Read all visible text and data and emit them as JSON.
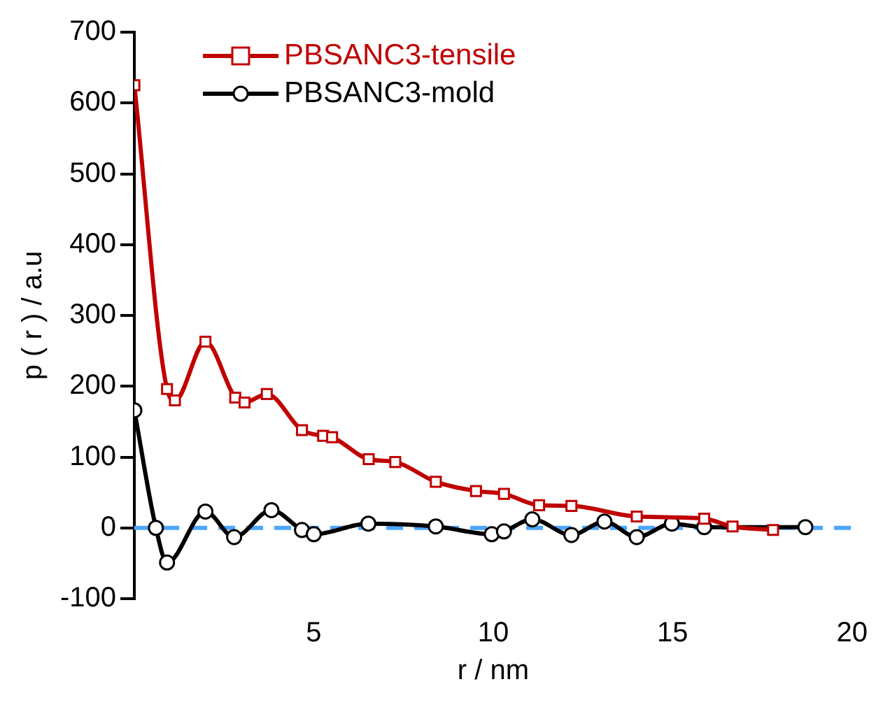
{
  "chart_data": {
    "type": "line",
    "xlabel": "r / nm",
    "ylabel": "p ( r ) / a.u",
    "xlim": [
      0,
      20
    ],
    "xticks": [
      5,
      10,
      15,
      20
    ],
    "ylim": [
      -100,
      700
    ],
    "yticks": [
      -100,
      0,
      100,
      200,
      300,
      400,
      500,
      600,
      700
    ],
    "series": [
      {
        "name": "PBSANC3-tensile",
        "color": "#c00000",
        "marker": "square",
        "x": [
          0,
          0.91,
          1.13,
          1.98,
          2.81,
          3.07,
          3.69,
          4.67,
          5.26,
          5.51,
          6.53,
          7.27,
          8.4,
          9.52,
          10.3,
          11.28,
          12.18,
          14,
          15.88,
          16.67,
          17.8
        ],
        "values": [
          625,
          196,
          180,
          263,
          184,
          177,
          189,
          138,
          130,
          128,
          97,
          93,
          65,
          52,
          48,
          32,
          31,
          16,
          13,
          2,
          -3
        ]
      },
      {
        "name": "PBSANC3-mold",
        "color": "#000000",
        "marker": "circle",
        "x": [
          0,
          0.6,
          0.91,
          1.98,
          2.78,
          3.82,
          4.67,
          5,
          6.52,
          8.4,
          9.96,
          10.3,
          11.09,
          12.18,
          13.1,
          14,
          14.98,
          15.88,
          18.7
        ],
        "values": [
          166,
          0,
          -49,
          23,
          -13,
          25,
          -3,
          -9,
          6,
          2,
          -9,
          -5,
          12,
          -10,
          9,
          -13,
          6,
          1,
          1
        ]
      }
    ],
    "ref_lines": [
      {
        "axis": "y",
        "value": 0,
        "color": "#4da6ff",
        "line_style": "dashed"
      }
    ],
    "legend": "top left",
    "grid": false,
    "line_style": "solid"
  }
}
